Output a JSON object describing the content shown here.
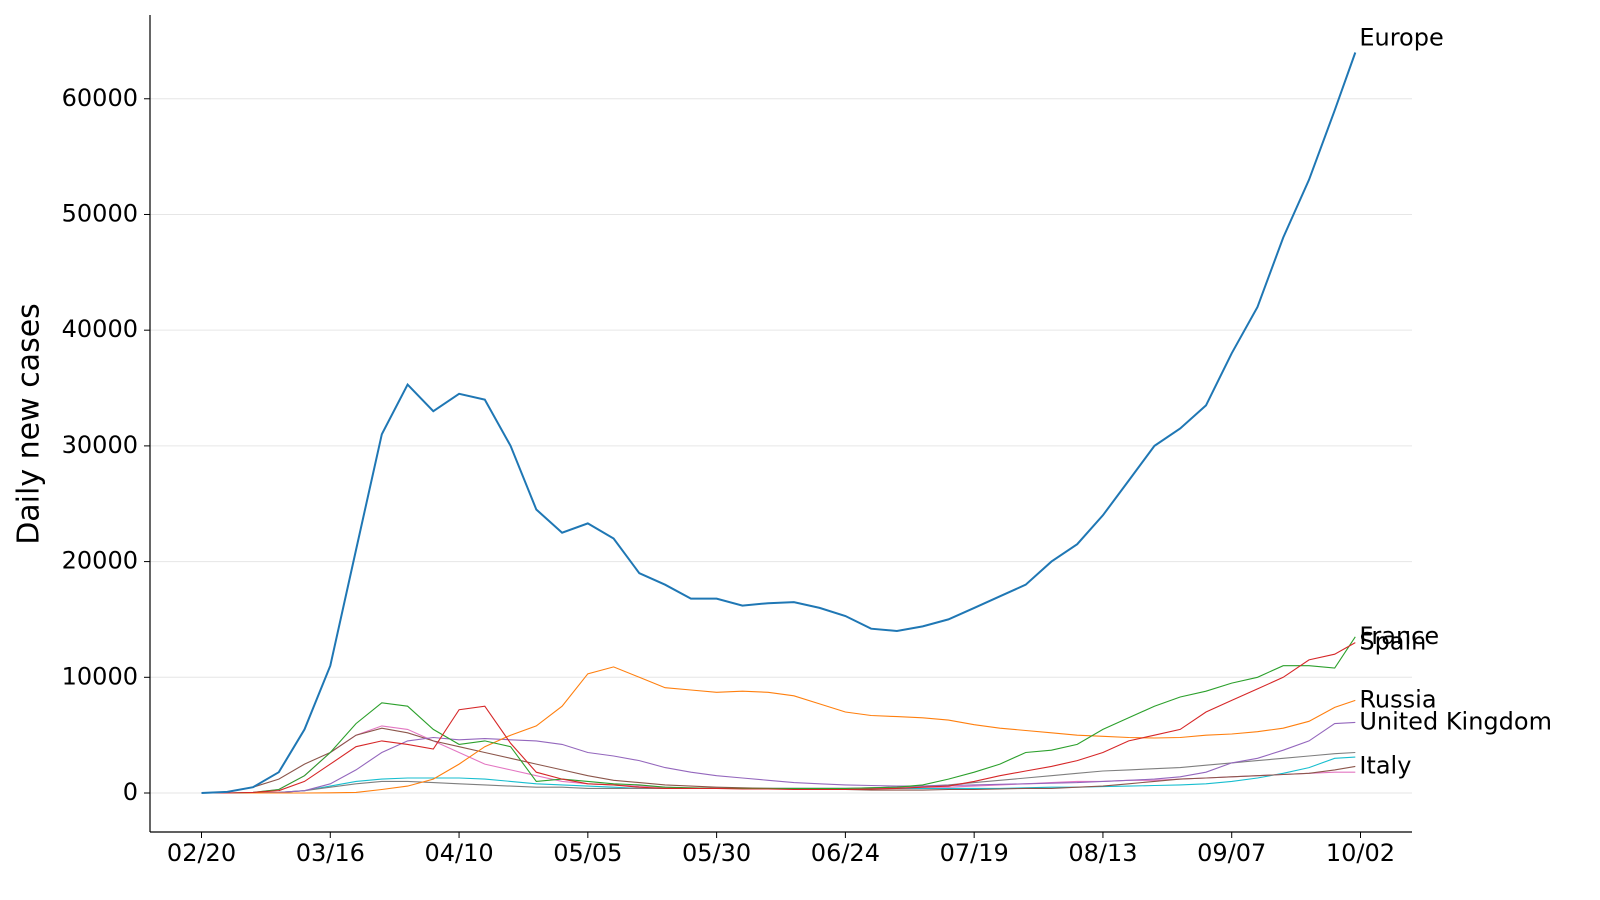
{
  "chart_data": {
    "type": "line",
    "y_label": "Daily new cases",
    "x": [
      "02/20",
      "02/25",
      "03/01",
      "03/06",
      "03/11",
      "03/16",
      "03/21",
      "03/26",
      "03/31",
      "04/05",
      "04/10",
      "04/15",
      "04/20",
      "04/25",
      "04/30",
      "05/05",
      "05/10",
      "05/15",
      "05/20",
      "05/25",
      "05/30",
      "06/04",
      "06/09",
      "06/14",
      "06/19",
      "06/24",
      "06/29",
      "07/04",
      "07/09",
      "07/14",
      "07/19",
      "07/24",
      "07/29",
      "08/03",
      "08/08",
      "08/13",
      "08/18",
      "08/23",
      "08/28",
      "09/02",
      "09/07",
      "09/12",
      "09/17",
      "09/22",
      "09/27",
      "10/01"
    ],
    "xlim": [
      "02/10",
      "10/12"
    ],
    "xticks": [
      "02/20",
      "03/16",
      "04/10",
      "05/05",
      "05/30",
      "06/24",
      "07/19",
      "08/13",
      "09/07",
      "10/02"
    ],
    "ylim": [
      -3370,
      67240
    ],
    "yticks": [
      0,
      10000,
      20000,
      30000,
      40000,
      50000,
      60000
    ],
    "grid": true,
    "series": [
      {
        "name": "Europe",
        "color": "#1f77b4",
        "values": [
          0,
          100,
          500,
          1800,
          5500,
          11000,
          21000,
          31000,
          35300,
          33000,
          34500,
          34000,
          30000,
          24500,
          22500,
          23300,
          22000,
          19000,
          18000,
          16800,
          16800,
          16200,
          16400,
          16500,
          16000,
          15300,
          14200,
          14000,
          14400,
          15000,
          16000,
          17000,
          18000,
          20000,
          21500,
          24000,
          27000,
          30000,
          31500,
          33500,
          38000,
          42000,
          48000,
          53000,
          59000,
          64000
        ]
      },
      {
        "name": "Spain",
        "color": "#d62728",
        "values": [
          0,
          0,
          50,
          200,
          1000,
          2500,
          4000,
          4500,
          4200,
          3800,
          7200,
          7500,
          4300,
          1800,
          1200,
          800,
          700,
          500,
          400,
          400,
          400,
          350,
          350,
          300,
          300,
          300,
          350,
          400,
          500,
          600,
          1000,
          1500,
          1900,
          2300,
          2800,
          3500,
          4500,
          5000,
          5500,
          7000,
          8000,
          9000,
          10000,
          11500,
          12000,
          13000
        ]
      },
      {
        "name": "France",
        "color": "#2ca02c",
        "values": [
          0,
          0,
          50,
          300,
          1500,
          3500,
          6000,
          7800,
          7500,
          5500,
          4200,
          4500,
          4000,
          1000,
          1200,
          1000,
          800,
          700,
          500,
          450,
          400,
          400,
          400,
          400,
          400,
          400,
          450,
          500,
          700,
          1200,
          1800,
          2500,
          3500,
          3700,
          4200,
          5500,
          6500,
          7500,
          8300,
          8800,
          9500,
          10000,
          11000,
          11000,
          10800,
          13500
        ]
      },
      {
        "name": "Russia",
        "color": "#ff7f0e",
        "values": [
          0,
          0,
          0,
          0,
          0,
          20,
          50,
          300,
          600,
          1200,
          2500,
          4000,
          5000,
          5800,
          7500,
          10300,
          10900,
          10000,
          9100,
          8900,
          8700,
          8800,
          8700,
          8400,
          7700,
          7000,
          6700,
          6600,
          6500,
          6300,
          5900,
          5600,
          5400,
          5200,
          5000,
          4900,
          4800,
          4750,
          4800,
          5000,
          5100,
          5300,
          5600,
          6200,
          7400,
          8000
        ]
      },
      {
        "name": "United Kingdom",
        "color": "#9467bd",
        "values": [
          0,
          0,
          0,
          50,
          200,
          800,
          2000,
          3500,
          4500,
          4800,
          4600,
          4700,
          4600,
          4500,
          4200,
          3500,
          3200,
          2800,
          2200,
          1800,
          1500,
          1300,
          1100,
          900,
          800,
          700,
          650,
          600,
          600,
          650,
          700,
          750,
          800,
          850,
          900,
          1000,
          1100,
          1200,
          1400,
          1800,
          2600,
          3000,
          3700,
          4500,
          6000,
          6100
        ]
      },
      {
        "name": "Italy",
        "color": "#8c564b",
        "values": [
          0,
          100,
          500,
          1200,
          2500,
          3500,
          5000,
          5600,
          5200,
          4500,
          4000,
          3500,
          3000,
          2500,
          2000,
          1500,
          1100,
          900,
          700,
          600,
          500,
          450,
          400,
          350,
          300,
          300,
          250,
          250,
          250,
          300,
          300,
          350,
          400,
          400,
          500,
          600,
          800,
          1000,
          1200,
          1300,
          1400,
          1500,
          1600,
          1700,
          2000,
          2300
        ]
      },
      {
        "color": "#e377c2",
        "values": [
          0,
          0,
          50,
          300,
          1500,
          3500,
          5000,
          5800,
          5500,
          4500,
          3500,
          2500,
          2000,
          1500,
          1000,
          800,
          700,
          600,
          500,
          400,
          400,
          400,
          400,
          400,
          400,
          400,
          400,
          450,
          500,
          500,
          600,
          700,
          800,
          900,
          1000,
          1000,
          1100,
          1100,
          1200,
          1300,
          1400,
          1500,
          1600,
          1700,
          1800,
          1800
        ]
      },
      {
        "color": "#7f7f7f",
        "values": [
          0,
          0,
          0,
          50,
          200,
          500,
          800,
          1000,
          1000,
          900,
          800,
          700,
          600,
          500,
          500,
          400,
          400,
          400,
          400,
          400,
          400,
          400,
          400,
          400,
          400,
          400,
          450,
          500,
          600,
          700,
          900,
          1100,
          1300,
          1500,
          1700,
          1900,
          2000,
          2100,
          2200,
          2400,
          2600,
          2800,
          3000,
          3200,
          3400,
          3500
        ]
      },
      {
        "color": "#17becf",
        "values": [
          0,
          0,
          0,
          50,
          200,
          600,
          1000,
          1200,
          1300,
          1300,
          1300,
          1200,
          1000,
          800,
          700,
          600,
          500,
          400,
          400,
          400,
          400,
          400,
          400,
          400,
          400,
          400,
          400,
          400,
          400,
          400,
          400,
          400,
          450,
          500,
          500,
          550,
          600,
          650,
          700,
          800,
          1000,
          1300,
          1700,
          2200,
          3000,
          3100
        ]
      }
    ]
  }
}
